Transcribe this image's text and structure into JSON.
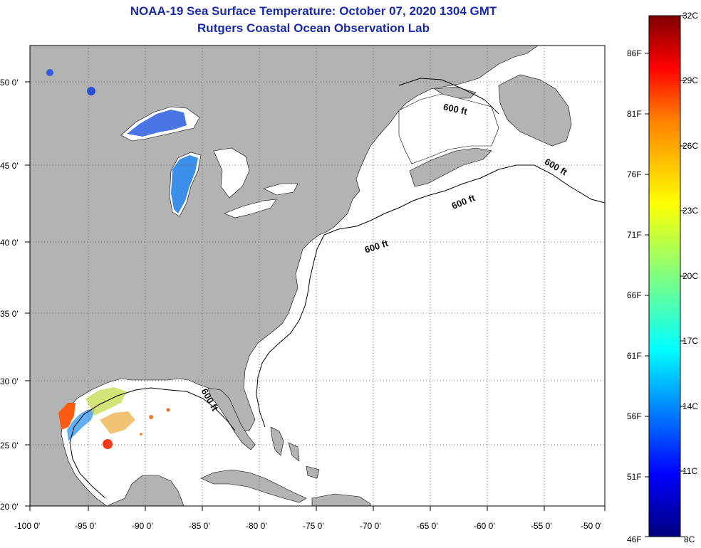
{
  "header": {
    "title": "NOAA-19 Sea Surface Temperature:  October 07, 2020 1304 GMT",
    "subtitle": "Rutgers Coastal Ocean Observation Lab"
  },
  "map": {
    "lon_ticks": [
      "-100 0'",
      "-95 0'",
      "-90 0'",
      "-85 0'",
      "-80 0'",
      "-75 0'",
      "-70 0'",
      "-65 0'",
      "-60 0'",
      "-55 0'",
      "-50 0'"
    ],
    "lat_ticks": [
      "50 0'",
      "45 0'",
      "40 0'",
      "35 0'",
      "30 0'",
      "25 0'",
      "20 0'"
    ],
    "isobath_label": "600 ft",
    "land_color": "#b3b3b3",
    "ocean_color": "#ffffff"
  },
  "colorbar": {
    "celsius": [
      "32C",
      "29C",
      "26C",
      "23C",
      "20C",
      "17C",
      "14C",
      "11C",
      "8C"
    ],
    "fahrenheit": [
      "86F",
      "81F",
      "76F",
      "71F",
      "66F",
      "61F",
      "56F",
      "51F",
      "46F"
    ],
    "colors": [
      "#7f0000",
      "#ff0000",
      "#ff8000",
      "#ffff00",
      "#80ff80",
      "#00ffff",
      "#0080ff",
      "#0000ff",
      "#00007f"
    ]
  }
}
